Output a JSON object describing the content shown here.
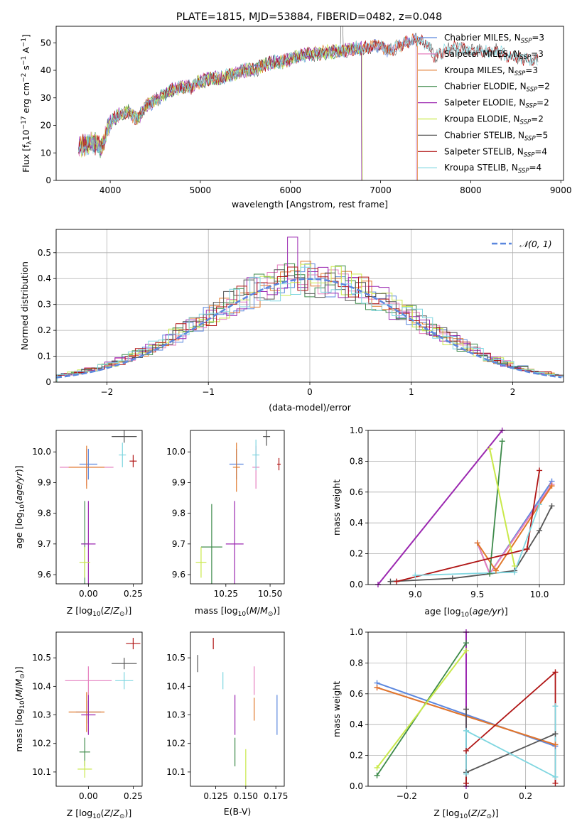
{
  "title": "PLATE=1815, MJD=53884, FIBERID=0482, z=0.048",
  "colors": {
    "Chabrier MILES": "#5b87de",
    "Salpeter MILES": "#e57fbf",
    "Kroupa MILES": "#e0782a",
    "Chabrier ELODIE": "#3d8a4a",
    "Salpeter ELODIE": "#9b27b0",
    "Kroupa ELODIE": "#c9e94a",
    "Chabrier STELIB": "#555555",
    "Salpeter STELIB": "#b01515",
    "Kroupa STELIB": "#7fd6e0"
  },
  "legend_text": {
    "nssp_sub": "SSP",
    "entries": [
      {
        "name": "Chabrier MILES",
        "n": "3"
      },
      {
        "name": "Salpeter MILES",
        "n": "3"
      },
      {
        "name": "Kroupa MILES",
        "n": "3"
      },
      {
        "name": "Chabrier ELODIE",
        "n": "2"
      },
      {
        "name": "Salpeter ELODIE",
        "n": "2"
      },
      {
        "name": "Kroupa ELODIE",
        "n": "2"
      },
      {
        "name": "Chabrier STELIB",
        "n": "5"
      },
      {
        "name": "Salpeter STELIB",
        "n": "4"
      },
      {
        "name": "Kroupa STELIB",
        "n": "4"
      }
    ],
    "normal": "𝒩(0, 1)"
  },
  "chart_data": [
    {
      "id": "spectrum",
      "type": "line",
      "xlabel": "wavelength [Angstrom, rest frame]",
      "ylabel": "Flux [f_λ 10^-17 erg cm^-2 s^-1 A^-1]",
      "xlim": [
        3400,
        9030
      ],
      "ylim": [
        0,
        56
      ],
      "xticks": [
        4000,
        5000,
        6000,
        7000,
        8000,
        9000
      ],
      "yticks": [
        0,
        10,
        20,
        30,
        40,
        50
      ],
      "continuum": [
        [
          3650,
          12
        ],
        [
          3800,
          14
        ],
        [
          3900,
          12
        ],
        [
          4000,
          21
        ],
        [
          4100,
          24
        ],
        [
          4200,
          25
        ],
        [
          4300,
          22
        ],
        [
          4400,
          27
        ],
        [
          4500,
          29
        ],
        [
          4600,
          31
        ],
        [
          4700,
          33
        ],
        [
          4800,
          34
        ],
        [
          4900,
          34
        ],
        [
          5000,
          36
        ],
        [
          5100,
          37
        ],
        [
          5200,
          37
        ],
        [
          5300,
          38
        ],
        [
          5400,
          39
        ],
        [
          5500,
          40
        ],
        [
          5600,
          40
        ],
        [
          5700,
          42
        ],
        [
          5800,
          43
        ],
        [
          5900,
          43
        ],
        [
          6000,
          44
        ],
        [
          6100,
          45
        ],
        [
          6200,
          46
        ],
        [
          6300,
          46
        ],
        [
          6400,
          46.5
        ],
        [
          6500,
          47
        ],
        [
          6600,
          47
        ],
        [
          6700,
          48
        ],
        [
          6800,
          48
        ],
        [
          6900,
          48.5
        ],
        [
          7000,
          49
        ],
        [
          7100,
          47
        ],
        [
          7200,
          49
        ],
        [
          7300,
          50
        ],
        [
          7400,
          51
        ],
        [
          7500,
          50
        ],
        [
          7600,
          45
        ],
        [
          7700,
          47
        ],
        [
          7800,
          48
        ],
        [
          7900,
          48
        ],
        [
          8000,
          47
        ],
        [
          8100,
          47
        ],
        [
          8200,
          47
        ],
        [
          8300,
          47
        ],
        [
          8400,
          45
        ],
        [
          8500,
          45
        ],
        [
          8600,
          44
        ],
        [
          8700,
          44
        ]
      ],
      "series": [
        {
          "name": "Chabrier MILES",
          "x_max": 7400
        },
        {
          "name": "Salpeter MILES",
          "x_max": 7400
        },
        {
          "name": "Kroupa MILES",
          "x_max": 7410
        },
        {
          "name": "Chabrier ELODIE",
          "x_max": 6790
        },
        {
          "name": "Salpeter ELODIE",
          "x_max": 6790
        },
        {
          "name": "Kroupa ELODIE",
          "x_max": 6800
        },
        {
          "name": "Chabrier STELIB",
          "x_max": 8750
        },
        {
          "name": "Salpeter STELIB",
          "x_max": 8750
        },
        {
          "name": "Kroupa STELIB",
          "x_max": 8750
        }
      ]
    },
    {
      "id": "residuals",
      "type": "histogram",
      "xlabel": "(data-model)/error",
      "ylabel": "Normed distribution",
      "xlim": [
        -2.5,
        2.5
      ],
      "ylim": [
        0,
        0.59
      ],
      "xticks": [
        -2,
        -1,
        0,
        1,
        2
      ],
      "yticks": [
        0.0,
        0.1,
        0.2,
        0.3,
        0.4,
        0.5
      ],
      "bin_width": 0.1,
      "normal_series": "𝒩(0, 1)",
      "profile_sigma": 1.0
    },
    {
      "id": "age_vs_Z",
      "type": "scatter",
      "xlabel": "Z [log10(Z/Z⊙)]",
      "ylabel": "age [log10(age/yr)]",
      "xlim": [
        -0.18,
        0.3
      ],
      "ylim": [
        9.57,
        10.07
      ],
      "xticks": [
        0.0,
        0.25
      ],
      "yticks": [
        9.6,
        9.7,
        9.8,
        9.9,
        10.0
      ],
      "points": [
        {
          "name": "Chabrier MILES",
          "x": 0.0,
          "y": 9.96,
          "xerr": 0.05,
          "yerr": 0.05
        },
        {
          "name": "Salpeter MILES",
          "x": -0.01,
          "y": 9.95,
          "xerr": 0.15,
          "yerr": 0.06
        },
        {
          "name": "Kroupa MILES",
          "x": -0.01,
          "y": 9.95,
          "xerr": 0.1,
          "yerr": 0.07
        },
        {
          "name": "Chabrier ELODIE",
          "x": -0.02,
          "y": 9.7,
          "xerr": 0.02,
          "yerr": 0.14
        },
        {
          "name": "Salpeter ELODIE",
          "x": 0.0,
          "y": 9.7,
          "xerr": 0.04,
          "yerr": 0.14
        },
        {
          "name": "Kroupa ELODIE",
          "x": -0.02,
          "y": 9.64,
          "xerr": 0.03,
          "yerr": 0.05
        },
        {
          "name": "Chabrier STELIB",
          "x": 0.2,
          "y": 10.05,
          "xerr": 0.07,
          "yerr": 0.02
        },
        {
          "name": "Salpeter STELIB",
          "x": 0.25,
          "y": 9.97,
          "xerr": 0.02,
          "yerr": 0.02
        },
        {
          "name": "Kroupa STELIB",
          "x": 0.19,
          "y": 9.99,
          "xerr": 0.02,
          "yerr": 0.04
        }
      ]
    },
    {
      "id": "age_vs_mass",
      "type": "scatter",
      "xlabel": "mass [log10(M/M⊙)]",
      "xlim": [
        10.05,
        10.58
      ],
      "ylim": [
        9.57,
        10.07
      ],
      "xticks": [
        10.25,
        10.5
      ],
      "yticks": [
        9.6,
        9.7,
        9.8,
        9.9,
        10.0
      ],
      "points": [
        {
          "name": "Chabrier MILES",
          "x": 10.31,
          "y": 9.96,
          "xerr": 0.04,
          "yerr": 0.05
        },
        {
          "name": "Salpeter MILES",
          "x": 10.42,
          "y": 9.95,
          "xerr": 0.02,
          "yerr": 0.07
        },
        {
          "name": "Kroupa MILES",
          "x": 10.31,
          "y": 9.95,
          "xerr": 0.02,
          "yerr": 0.08
        },
        {
          "name": "Chabrier ELODIE",
          "x": 10.17,
          "y": 9.69,
          "xerr": 0.06,
          "yerr": 0.14
        },
        {
          "name": "Salpeter ELODIE",
          "x": 10.3,
          "y": 9.7,
          "xerr": 0.05,
          "yerr": 0.14
        },
        {
          "name": "Kroupa ELODIE",
          "x": 10.11,
          "y": 9.64,
          "xerr": 0.03,
          "yerr": 0.05
        },
        {
          "name": "Chabrier STELIB",
          "x": 10.48,
          "y": 10.05,
          "xerr": 0.02,
          "yerr": 0.03
        },
        {
          "name": "Salpeter STELIB",
          "x": 10.55,
          "y": 9.96,
          "xerr": 0.01,
          "yerr": 0.02
        },
        {
          "name": "Kroupa STELIB",
          "x": 10.42,
          "y": 9.99,
          "xerr": 0.02,
          "yerr": 0.05
        }
      ]
    },
    {
      "id": "weight_vs_age",
      "type": "line",
      "xlabel": "age [log10(age/yr)]",
      "ylabel": "mass weight",
      "xlim": [
        8.62,
        10.2
      ],
      "ylim": [
        0,
        1
      ],
      "xticks": [
        9.0,
        9.5,
        10.0
      ],
      "yticks": [
        0.0,
        0.2,
        0.4,
        0.6,
        0.8,
        1.0
      ],
      "series": [
        {
          "name": "Chabrier MILES",
          "points": [
            [
              9.5,
              0.27
            ],
            [
              9.6,
              0.07
            ],
            [
              10.1,
              0.67
            ]
          ]
        },
        {
          "name": "Salpeter MILES",
          "points": [
            [
              9.5,
              0.27
            ],
            [
              9.6,
              0.07
            ],
            [
              10.1,
              0.65
            ]
          ]
        },
        {
          "name": "Kroupa MILES",
          "points": [
            [
              9.5,
              0.27
            ],
            [
              9.65,
              0.09
            ],
            [
              10.1,
              0.64
            ]
          ]
        },
        {
          "name": "Chabrier ELODIE",
          "points": [
            [
              9.6,
              0.07
            ],
            [
              9.7,
              0.93
            ]
          ]
        },
        {
          "name": "Salpeter ELODIE",
          "points": [
            [
              8.7,
              0.0
            ],
            [
              9.7,
              1.0
            ]
          ]
        },
        {
          "name": "Kroupa ELODIE",
          "points": [
            [
              9.6,
              0.88
            ],
            [
              9.8,
              0.12
            ]
          ]
        },
        {
          "name": "Chabrier STELIB",
          "points": [
            [
              8.8,
              0.02
            ],
            [
              9.3,
              0.04
            ],
            [
              9.8,
              0.09
            ],
            [
              10.0,
              0.35
            ],
            [
              10.1,
              0.51
            ]
          ]
        },
        {
          "name": "Salpeter STELIB",
          "points": [
            [
              8.85,
              0.02
            ],
            [
              9.9,
              0.23
            ],
            [
              10.0,
              0.74
            ]
          ]
        },
        {
          "name": "Kroupa STELIB",
          "points": [
            [
              9.0,
              0.06
            ],
            [
              9.8,
              0.08
            ],
            [
              10.0,
              0.52
            ]
          ]
        }
      ]
    },
    {
      "id": "mass_vs_Z",
      "type": "scatter",
      "xlabel": "Z [log10(Z/Z⊙)]",
      "ylabel": "mass [log10(M/M⊙)]",
      "xlim": [
        -0.18,
        0.3
      ],
      "ylim": [
        10.05,
        10.59
      ],
      "xticks": [
        0.0,
        0.25
      ],
      "yticks": [
        10.1,
        10.2,
        10.3,
        10.4,
        10.5
      ],
      "points": [
        {
          "name": "Chabrier MILES",
          "x": 0.0,
          "y": 10.31,
          "xerr": 0.07,
          "yerr": 0.04
        },
        {
          "name": "Salpeter MILES",
          "x": 0.0,
          "y": 10.42,
          "xerr": 0.13,
          "yerr": 0.05
        },
        {
          "name": "Kroupa MILES",
          "x": -0.01,
          "y": 10.31,
          "xerr": 0.1,
          "yerr": 0.07
        },
        {
          "name": "Chabrier ELODIE",
          "x": -0.02,
          "y": 10.17,
          "xerr": 0.03,
          "yerr": 0.05
        },
        {
          "name": "Salpeter ELODIE",
          "x": 0.0,
          "y": 10.3,
          "xerr": 0.04,
          "yerr": 0.07
        },
        {
          "name": "Kroupa ELODIE",
          "x": -0.02,
          "y": 10.11,
          "xerr": 0.04,
          "yerr": 0.03
        },
        {
          "name": "Chabrier STELIB",
          "x": 0.2,
          "y": 10.48,
          "xerr": 0.07,
          "yerr": 0.02
        },
        {
          "name": "Salpeter STELIB",
          "x": 0.25,
          "y": 10.55,
          "xerr": 0.04,
          "yerr": 0.02
        },
        {
          "name": "Kroupa STELIB",
          "x": 0.2,
          "y": 10.42,
          "xerr": 0.05,
          "yerr": 0.03
        }
      ]
    },
    {
      "id": "mass_vs_ebv",
      "type": "scatter",
      "xlabel": "E(B-V)",
      "xlim": [
        0.104,
        0.182
      ],
      "ylim": [
        10.05,
        10.59
      ],
      "xticks": [
        0.125,
        0.15,
        0.175
      ],
      "yticks": [
        10.1,
        10.2,
        10.3,
        10.4,
        10.5
      ],
      "points": [
        {
          "name": "Chabrier MILES",
          "x": 0.176,
          "y": 10.3,
          "xerr": 0.0,
          "yerr": 0.07
        },
        {
          "name": "Salpeter MILES",
          "x": 0.157,
          "y": 10.42,
          "xerr": 0.0,
          "yerr": 0.05
        },
        {
          "name": "Kroupa MILES",
          "x": 0.157,
          "y": 10.32,
          "xerr": 0.0,
          "yerr": 0.04
        },
        {
          "name": "Chabrier ELODIE",
          "x": 0.141,
          "y": 10.17,
          "xerr": 0.0,
          "yerr": 0.05
        },
        {
          "name": "Salpeter ELODIE",
          "x": 0.141,
          "y": 10.3,
          "xerr": 0.0,
          "yerr": 0.07
        },
        {
          "name": "Kroupa ELODIE",
          "x": 0.15,
          "y": 10.11,
          "xerr": 0.0,
          "yerr": 0.07
        },
        {
          "name": "Chabrier STELIB",
          "x": 0.11,
          "y": 10.48,
          "xerr": 0.0,
          "yerr": 0.03
        },
        {
          "name": "Salpeter STELIB",
          "x": 0.123,
          "y": 10.55,
          "xerr": 0.0,
          "yerr": 0.02
        },
        {
          "name": "Kroupa STELIB",
          "x": 0.131,
          "y": 10.42,
          "xerr": 0.0,
          "yerr": 0.03
        }
      ]
    },
    {
      "id": "weight_vs_Z",
      "type": "line",
      "xlabel": "Z [log10(Z/Z⊙)]",
      "ylabel": "mass weight",
      "xlim": [
        -0.33,
        0.33
      ],
      "ylim": [
        0,
        1
      ],
      "xticks": [
        -0.2,
        0.0,
        0.2
      ],
      "yticks": [
        0.0,
        0.2,
        0.4,
        0.6,
        0.8,
        1.0
      ],
      "series": [
        {
          "name": "Chabrier MILES",
          "points": [
            [
              -0.3,
              0.67
            ],
            [
              0.3,
              0.26
            ]
          ]
        },
        {
          "name": "Salpeter MILES",
          "points": [
            [
              -0.3,
              0.64
            ],
            [
              0.3,
              0.27
            ]
          ]
        },
        {
          "name": "Kroupa MILES",
          "points": [
            [
              -0.3,
              0.64
            ],
            [
              0.3,
              0.27
            ]
          ]
        },
        {
          "name": "Chabrier ELODIE",
          "points": [
            [
              -0.3,
              0.07
            ],
            [
              0.0,
              0.93
            ]
          ]
        },
        {
          "name": "Salpeter ELODIE",
          "points": [
            [
              0.0,
              0.0
            ],
            [
              0.0,
              1.0
            ]
          ]
        },
        {
          "name": "Kroupa ELODIE",
          "points": [
            [
              -0.3,
              0.12
            ],
            [
              0.0,
              0.88
            ]
          ]
        },
        {
          "name": "Chabrier STELIB",
          "points": [
            [
              0.0,
              0.02
            ],
            [
              0.0,
              0.5
            ],
            [
              0.0,
              0.09
            ],
            [
              0.3,
              0.34
            ]
          ]
        },
        {
          "name": "Salpeter STELIB",
          "points": [
            [
              0.0,
              0.02
            ],
            [
              0.0,
              0.23
            ],
            [
              0.3,
              0.74
            ],
            [
              0.3,
              0.02
            ]
          ]
        },
        {
          "name": "Kroupa STELIB",
          "points": [
            [
              0.0,
              0.08
            ],
            [
              0.0,
              0.36
            ],
            [
              0.3,
              0.06
            ],
            [
              0.3,
              0.52
            ]
          ]
        }
      ]
    }
  ]
}
